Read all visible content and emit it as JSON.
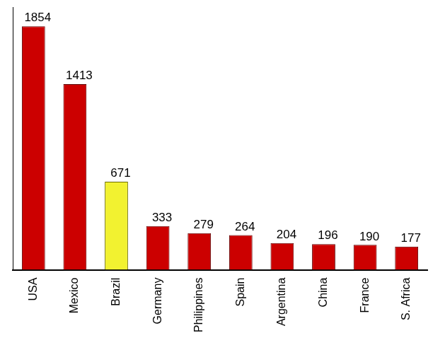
{
  "chart_data": {
    "type": "bar",
    "categories": [
      "USA",
      "Mexico",
      "Brazil",
      "Germany",
      "Philippines",
      "Spain",
      "Argentina",
      "China",
      "France",
      "S. Africa"
    ],
    "values": [
      1854,
      1413,
      671,
      333,
      279,
      264,
      204,
      196,
      190,
      177
    ],
    "colors": [
      "#cc0000",
      "#cc0000",
      "#f2f230",
      "#cc0000",
      "#cc0000",
      "#cc0000",
      "#cc0000",
      "#cc0000",
      "#cc0000",
      "#cc0000"
    ],
    "ylim": [
      0,
      2000
    ],
    "grid": false,
    "data_labels": true,
    "tick_labels": "x"
  }
}
